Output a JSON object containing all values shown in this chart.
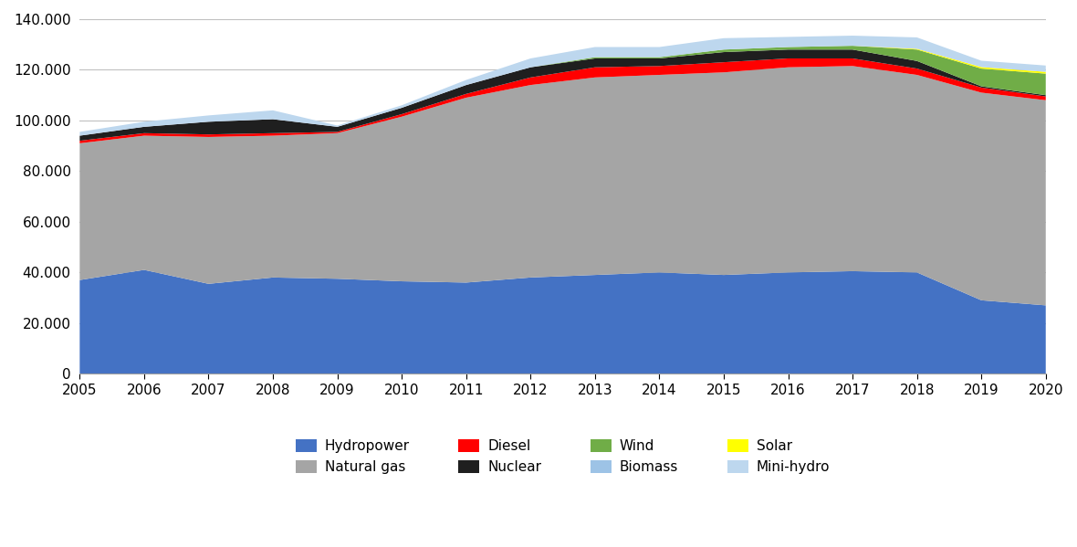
{
  "years": [
    2005,
    2006,
    2007,
    2008,
    2009,
    2010,
    2011,
    2012,
    2013,
    2014,
    2015,
    2016,
    2017,
    2018,
    2019,
    2020
  ],
  "hydropower": [
    37000,
    41000,
    35500,
    38000,
    37500,
    36500,
    36000,
    38000,
    39000,
    40000,
    39000,
    40000,
    40500,
    40000,
    29000,
    27000
  ],
  "natural_gas": [
    54000,
    53000,
    58000,
    56000,
    57500,
    65000,
    73000,
    76000,
    78000,
    78000,
    80000,
    81000,
    81000,
    78000,
    82000,
    81000
  ],
  "diesel": [
    1000,
    1000,
    1000,
    1000,
    500,
    1000,
    1500,
    3000,
    4000,
    3500,
    4000,
    3500,
    3000,
    2500,
    2000,
    1500
  ],
  "nuclear": [
    2000,
    2500,
    5000,
    5500,
    2000,
    2500,
    3500,
    4000,
    3500,
    3000,
    4000,
    3500,
    3500,
    3000,
    500,
    500
  ],
  "wind": [
    0,
    0,
    0,
    0,
    0,
    0,
    0,
    0,
    500,
    500,
    1000,
    1000,
    1500,
    4500,
    7000,
    8500
  ],
  "solar": [
    0,
    0,
    0,
    0,
    0,
    0,
    0,
    0,
    0,
    0,
    0,
    0,
    0,
    300,
    600,
    700
  ],
  "mini_hydro": [
    1500,
    2000,
    2500,
    3500,
    500,
    1000,
    2000,
    3500,
    4000,
    4000,
    4500,
    4000,
    4000,
    4500,
    2500,
    2500
  ],
  "colors": {
    "hydropower": "#4472C4",
    "natural_gas": "#A5A5A5",
    "diesel": "#FF0000",
    "nuclear": "#1F1F1F",
    "wind": "#70AD47",
    "solar": "#FFFF00",
    "mini_hydro": "#BDD7EE"
  },
  "legend_colors": {
    "hydropower": "#4472C4",
    "natural_gas": "#A5A5A5",
    "diesel": "#FF0000",
    "nuclear": "#1F1F1F",
    "wind": "#70AD47",
    "biomass": "#9DC3E6",
    "solar": "#FFFF00",
    "mini_hydro": "#BDD7EE"
  },
  "labels": {
    "hydropower": "Hydropower",
    "natural_gas": "Natural gas",
    "diesel": "Diesel",
    "nuclear": "Nuclear",
    "wind": "Wind",
    "biomass": "Biomass",
    "solar": "Solar",
    "mini_hydro": "Mini-hydro"
  },
  "ylim": [
    0,
    140000
  ],
  "yticks": [
    0,
    20000,
    40000,
    60000,
    80000,
    100000,
    120000,
    140000
  ],
  "background_color": "#FFFFFF"
}
